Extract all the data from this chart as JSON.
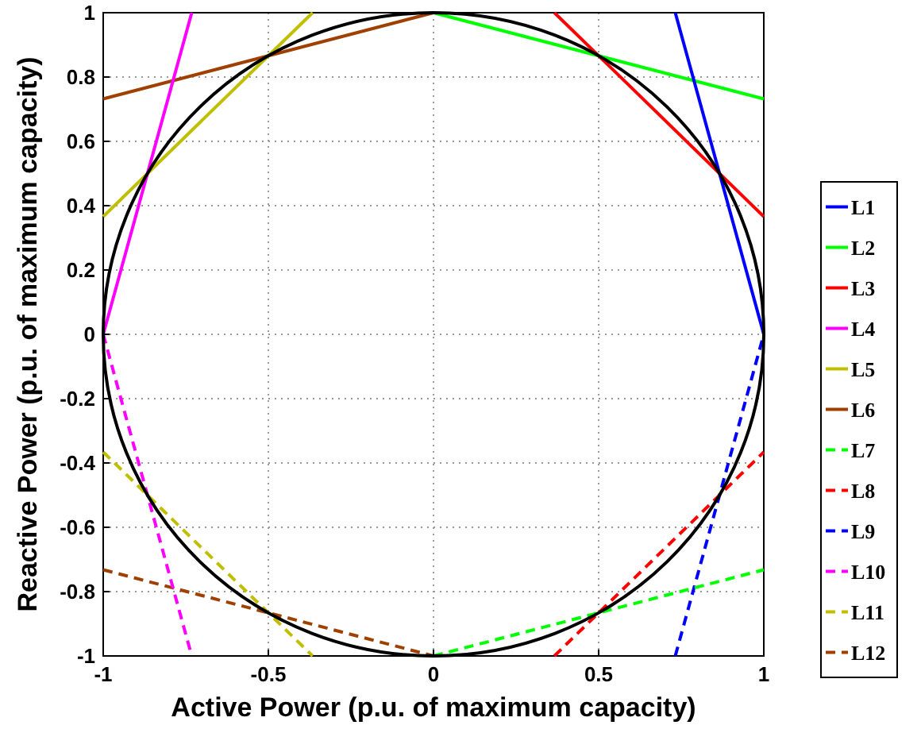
{
  "chart_data": {
    "type": "line",
    "xlabel": "Active Power (p.u. of maximum capacity)",
    "ylabel": "Reactive Power (p.u. of maximum capacity)",
    "xlim": [
      -1,
      1
    ],
    "ylim": [
      -1,
      1
    ],
    "xticks": [
      -1,
      -0.5,
      0,
      0.5,
      1
    ],
    "yticks": [
      -1,
      -0.8,
      -0.6,
      -0.4,
      -0.2,
      0,
      0.2,
      0.4,
      0.6,
      0.8,
      1
    ],
    "grid": true,
    "legend": "right",
    "marker": "none",
    "series": [
      {
        "name": "L1",
        "color": "#0000ff",
        "line_style": "solid",
        "x": [
          1,
          0.732
        ],
        "values": [
          0,
          1
        ]
      },
      {
        "name": "L2",
        "color": "#00ff00",
        "line_style": "solid",
        "x": [
          0,
          1
        ],
        "values": [
          1,
          0.732
        ]
      },
      {
        "name": "L3",
        "color": "#ff0000",
        "line_style": "solid",
        "x": [
          0.366,
          1
        ],
        "values": [
          1,
          0.366
        ]
      },
      {
        "name": "L4",
        "color": "#ff00ff",
        "line_style": "solid",
        "x": [
          -1,
          -0.732
        ],
        "values": [
          0,
          1
        ]
      },
      {
        "name": "L5",
        "color": "#bfbf00",
        "line_style": "solid",
        "x": [
          -1,
          -0.366
        ],
        "values": [
          0.366,
          1
        ]
      },
      {
        "name": "L6",
        "color": "#a04000",
        "line_style": "solid",
        "x": [
          -1,
          0
        ],
        "values": [
          0.732,
          1
        ]
      },
      {
        "name": "L7",
        "color": "#00ff00",
        "line_style": "dashed",
        "x": [
          0,
          1
        ],
        "values": [
          -1,
          -0.732
        ]
      },
      {
        "name": "L8",
        "color": "#ff0000",
        "line_style": "dashed",
        "x": [
          0.366,
          1
        ],
        "values": [
          -1,
          -0.366
        ]
      },
      {
        "name": "L9",
        "color": "#0000ff",
        "line_style": "dashed",
        "x": [
          0.732,
          1
        ],
        "values": [
          -1,
          0
        ]
      },
      {
        "name": "L10",
        "color": "#ff00ff",
        "line_style": "dashed",
        "x": [
          -1,
          -0.732
        ],
        "values": [
          0,
          -1
        ]
      },
      {
        "name": "L11",
        "color": "#bfbf00",
        "line_style": "dashed",
        "x": [
          -1,
          -0.366
        ],
        "values": [
          -0.366,
          -1
        ]
      },
      {
        "name": "L12",
        "color": "#a04000",
        "line_style": "dashed",
        "x": [
          -1,
          0
        ],
        "values": [
          -0.732,
          -1
        ]
      }
    ]
  }
}
